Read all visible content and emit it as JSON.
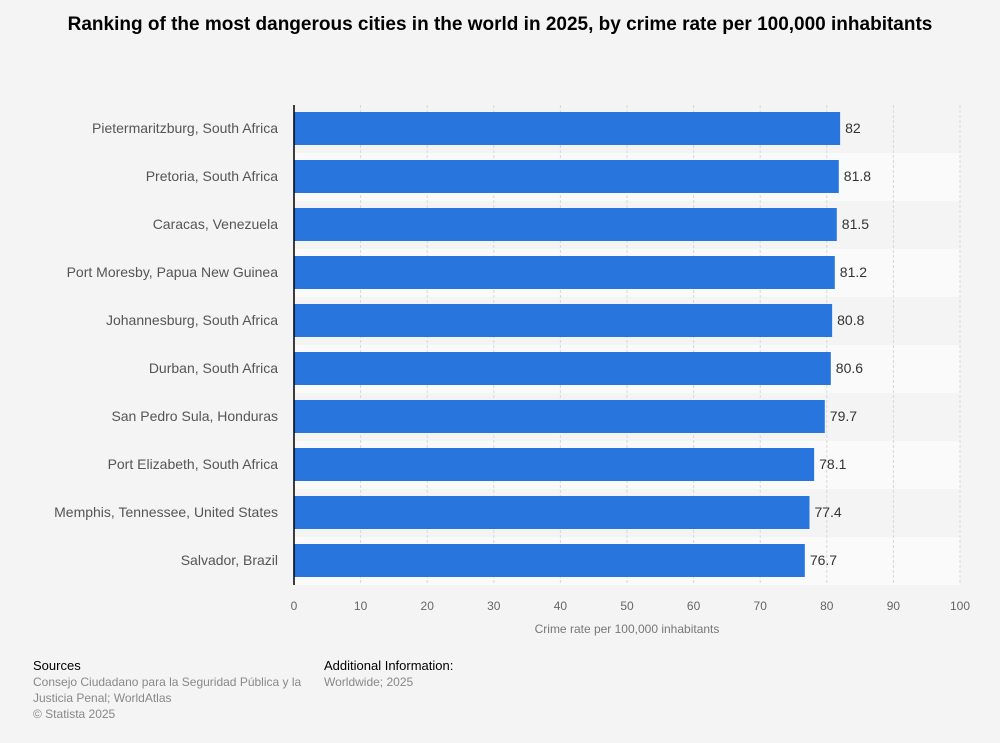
{
  "chart_data": {
    "type": "bar",
    "orientation": "horizontal",
    "title": "Ranking of the most dangerous cities in the world in 2025, by crime rate per 100,000 inhabitants",
    "xlabel": "Crime rate per 100,000 inhabitants",
    "ylabel": "",
    "categories": [
      "Pietermaritzburg, South Africa",
      "Pretoria, South Africa",
      "Caracas, Venezuela",
      "Port Moresby, Papua New Guinea",
      "Johannesburg, South Africa",
      "Durban, South Africa",
      "San Pedro Sula, Honduras",
      "Port Elizabeth, South Africa",
      "Memphis, Tennessee, United States",
      "Salvador, Brazil"
    ],
    "values": [
      82,
      81.8,
      81.5,
      81.2,
      80.8,
      80.6,
      79.7,
      78.1,
      77.4,
      76.7
    ],
    "value_labels": [
      "82",
      "81.8",
      "81.5",
      "81.2",
      "80.8",
      "80.6",
      "79.7",
      "78.1",
      "77.4",
      "76.7"
    ],
    "xlim": [
      0,
      100
    ],
    "ticks": [
      "0",
      "10",
      "20",
      "30",
      "40",
      "50",
      "60",
      "70",
      "80",
      "90",
      "100"
    ],
    "grid": true,
    "bar_color": "#2876dd"
  },
  "footer": {
    "sources_label": "Sources",
    "sources_line1": "Consejo Ciudadano para la Seguridad Pública y la",
    "sources_line2": "Justicia Penal; WorldAtlas",
    "copyright": "© Statista 2025",
    "additional_label": "Additional Information:",
    "additional_text": "Worldwide; 2025"
  }
}
